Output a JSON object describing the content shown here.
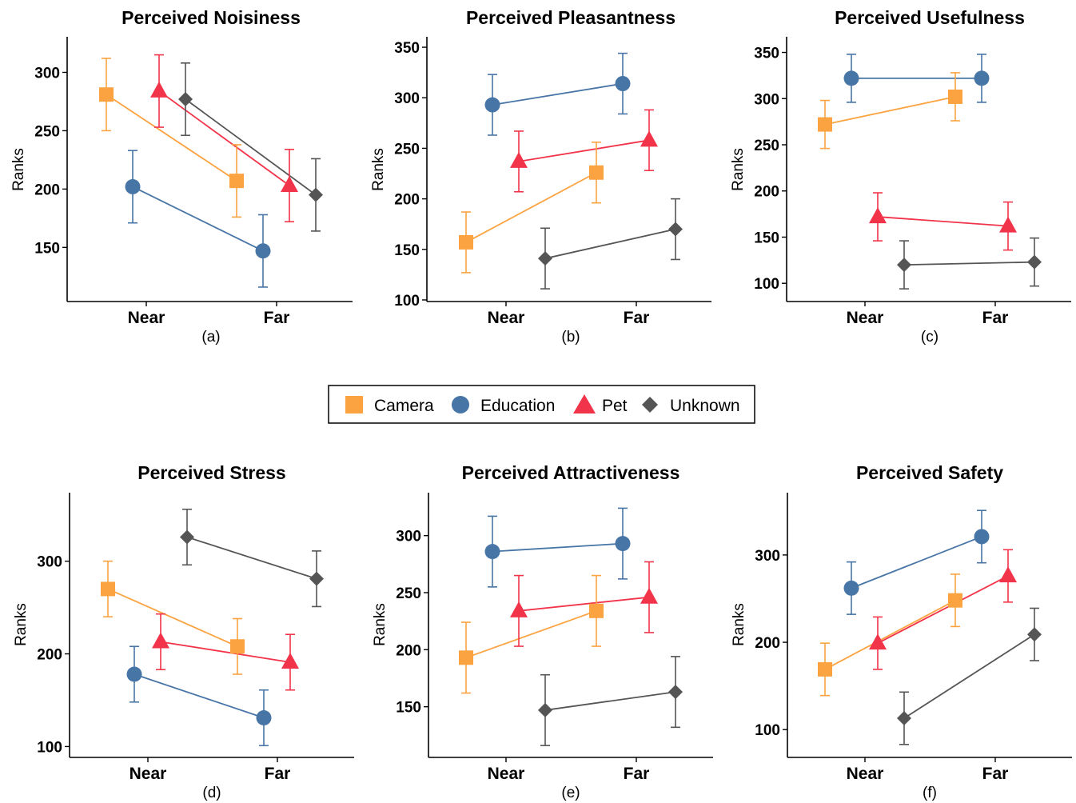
{
  "legend": {
    "items": [
      {
        "name": "Camera",
        "shape": "square",
        "color": "#FBA341"
      },
      {
        "name": "Education",
        "shape": "circle",
        "color": "#4775A6"
      },
      {
        "name": "Pet",
        "shape": "triangle",
        "color": "#F2344A"
      },
      {
        "name": "Unknown",
        "shape": "diamond",
        "color": "#555555"
      }
    ]
  },
  "chart_data": [
    {
      "type": "scatter",
      "title": "Perceived Noisiness",
      "caption": "(a)",
      "ylabel": "Ranks",
      "categories": [
        "Near",
        "Far"
      ],
      "yticks": [
        150,
        200,
        250,
        300
      ],
      "ylim": [
        105,
        325
      ],
      "series": [
        {
          "name": "Camera",
          "values": [
            281,
            207
          ],
          "errors": [
            31,
            31
          ]
        },
        {
          "name": "Education",
          "values": [
            202,
            147
          ],
          "errors": [
            31,
            31
          ]
        },
        {
          "name": "Pet",
          "values": [
            284,
            203
          ],
          "errors": [
            31,
            31
          ]
        },
        {
          "name": "Unknown",
          "values": [
            277,
            195
          ],
          "errors": [
            31,
            31
          ]
        }
      ]
    },
    {
      "type": "scatter",
      "title": "Perceived Pleasantness",
      "caption": "(b)",
      "ylabel": "Ranks",
      "categories": [
        "Near",
        "Far"
      ],
      "yticks": [
        100,
        150,
        200,
        250,
        300,
        350
      ],
      "ylim": [
        100,
        354
      ],
      "series": [
        {
          "name": "Camera",
          "values": [
            157,
            226
          ],
          "errors": [
            30,
            30
          ]
        },
        {
          "name": "Education",
          "values": [
            293,
            314
          ],
          "errors": [
            30,
            30
          ]
        },
        {
          "name": "Pet",
          "values": [
            237,
            258
          ],
          "errors": [
            30,
            30
          ]
        },
        {
          "name": "Unknown",
          "values": [
            141,
            170
          ],
          "errors": [
            30,
            30
          ]
        }
      ]
    },
    {
      "type": "scatter",
      "title": "Perceived Usefulness",
      "caption": "(c)",
      "ylabel": "Ranks",
      "categories": [
        "Near",
        "Far"
      ],
      "yticks": [
        100,
        150,
        200,
        250,
        300,
        350
      ],
      "ylim": [
        82,
        360
      ],
      "series": [
        {
          "name": "Camera",
          "values": [
            272,
            302
          ],
          "errors": [
            26,
            26
          ]
        },
        {
          "name": "Education",
          "values": [
            322,
            322
          ],
          "errors": [
            26,
            26
          ]
        },
        {
          "name": "Pet",
          "values": [
            172,
            162
          ],
          "errors": [
            26,
            26
          ]
        },
        {
          "name": "Unknown",
          "values": [
            120,
            123
          ],
          "errors": [
            26,
            26
          ]
        }
      ]
    },
    {
      "type": "scatter",
      "title": "Perceived Stress",
      "caption": "(d)",
      "ylabel": "Ranks",
      "categories": [
        "Near",
        "Far"
      ],
      "yticks": [
        100,
        200,
        300
      ],
      "ylim": [
        90,
        367
      ],
      "series": [
        {
          "name": "Camera",
          "values": [
            270,
            208
          ],
          "errors": [
            30,
            30
          ]
        },
        {
          "name": "Education",
          "values": [
            178,
            131
          ],
          "errors": [
            30,
            30
          ]
        },
        {
          "name": "Pet",
          "values": [
            213,
            191
          ],
          "errors": [
            30,
            30
          ]
        },
        {
          "name": "Unknown",
          "values": [
            326,
            281
          ],
          "errors": [
            30,
            30
          ]
        }
      ]
    },
    {
      "type": "scatter",
      "title": "Perceived Attractiveness",
      "caption": "(e)",
      "ylabel": "Ranks",
      "categories": [
        "Near",
        "Far"
      ],
      "yticks": [
        150,
        200,
        250,
        300
      ],
      "ylim": [
        107,
        332
      ],
      "series": [
        {
          "name": "Camera",
          "values": [
            193,
            234
          ],
          "errors": [
            31,
            31
          ]
        },
        {
          "name": "Education",
          "values": [
            286,
            293
          ],
          "errors": [
            31,
            31
          ]
        },
        {
          "name": "Pet",
          "values": [
            234,
            246
          ],
          "errors": [
            31,
            31
          ]
        },
        {
          "name": "Unknown",
          "values": [
            147,
            163
          ],
          "errors": [
            31,
            31
          ]
        }
      ]
    },
    {
      "type": "scatter",
      "title": "Perceived Safety",
      "caption": "(f)",
      "ylabel": "Ranks",
      "categories": [
        "Near",
        "Far"
      ],
      "yticks": [
        100,
        200,
        300
      ],
      "ylim": [
        70,
        364
      ],
      "series": [
        {
          "name": "Camera",
          "values": [
            169,
            248
          ],
          "errors": [
            30,
            30
          ]
        },
        {
          "name": "Education",
          "values": [
            262,
            321
          ],
          "errors": [
            30,
            30
          ]
        },
        {
          "name": "Pet",
          "values": [
            199,
            276
          ],
          "errors": [
            30,
            30
          ]
        },
        {
          "name": "Unknown",
          "values": [
            113,
            209
          ],
          "errors": [
            30,
            30
          ]
        }
      ]
    }
  ]
}
